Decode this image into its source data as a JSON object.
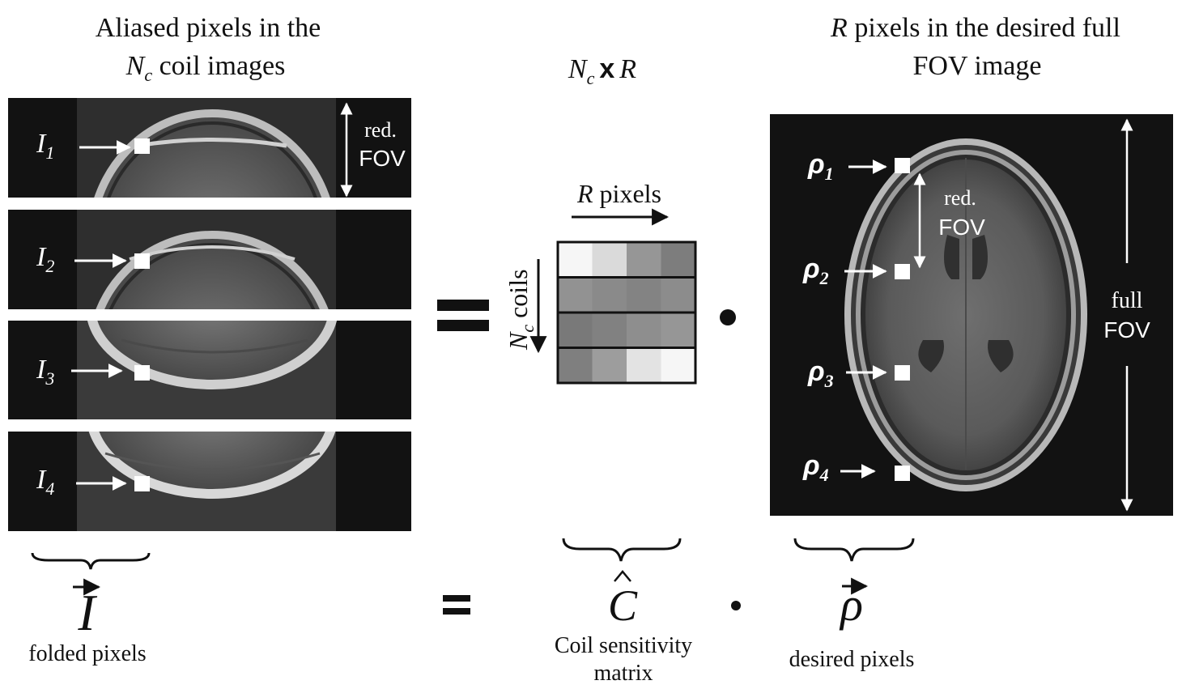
{
  "left_title": {
    "line1": "Aliased pixels in the",
    "n_main": "N",
    "n_sub": "c",
    "line2_rest": " coil images"
  },
  "middle_title": {
    "n_main": "N",
    "n_sub": "c",
    "times": "x",
    "r": "R"
  },
  "right_title": {
    "r": "R",
    "line1_rest": " pixels in the desired full",
    "line2": "FOV image"
  },
  "coil_images": [
    {
      "sym": "I",
      "sub": "1"
    },
    {
      "sym": "I",
      "sub": "2"
    },
    {
      "sym": "I",
      "sub": "3"
    },
    {
      "sym": "I",
      "sub": "4"
    }
  ],
  "reduced_fov": {
    "line1": "red.",
    "line2": "FOV"
  },
  "matrix": {
    "r_label_italic": "R",
    "r_label_rest": " pixels",
    "nc_main": "N",
    "nc_sub": "c",
    "nc_rest": " coils",
    "cells": [
      [
        0.97,
        0.84,
        0.52,
        0.4
      ],
      [
        0.5,
        0.46,
        0.43,
        0.47
      ],
      [
        0.38,
        0.42,
        0.48,
        0.52
      ],
      [
        0.41,
        0.55,
        0.88,
        0.97
      ]
    ]
  },
  "full_image": {
    "rhos": [
      {
        "sym": "ρ",
        "sub": "1"
      },
      {
        "sym": "ρ",
        "sub": "2"
      },
      {
        "sym": "ρ",
        "sub": "3"
      },
      {
        "sym": "ρ",
        "sub": "4"
      }
    ],
    "red_fov": {
      "line1": "red.",
      "line2": "FOV"
    },
    "full_fov": {
      "line1": "full",
      "line2": "FOV"
    }
  },
  "equals_symbol": "=",
  "dot_symbol": "•",
  "bottom": {
    "i_symbol": "I",
    "i_caption": "folded pixels",
    "c_symbol": "C",
    "c_caption_line1": "Coil sensitivity",
    "c_caption_line2": "matrix",
    "rho_symbol": "ρ",
    "rho_caption": "desired pixels"
  },
  "colors": {
    "panel_bg": "#101010",
    "marker": "#ffffff",
    "text": "#111111"
  }
}
